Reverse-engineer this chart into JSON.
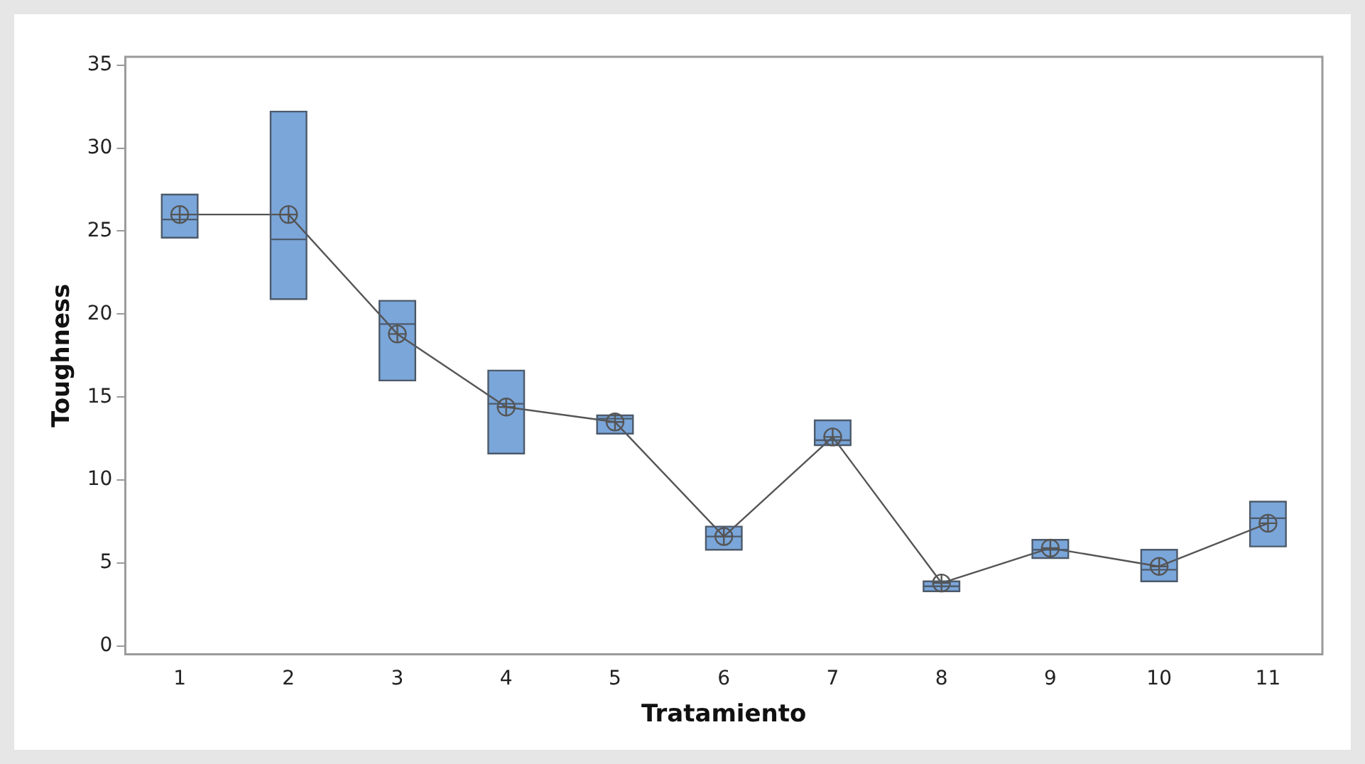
{
  "chart_data": {
    "type": "box",
    "xlabel": "Tratamiento",
    "ylabel": "Toughness",
    "categories": [
      "1",
      "2",
      "3",
      "4",
      "5",
      "6",
      "7",
      "8",
      "9",
      "10",
      "11"
    ],
    "color": "#7aa6da",
    "boxes": [
      {
        "low": 24.6,
        "q1": 24.6,
        "median": 25.7,
        "q3": 27.2,
        "high": 27.2,
        "mean": 26.0
      },
      {
        "low": 20.9,
        "q1": 20.9,
        "median": 24.5,
        "q3": 32.2,
        "high": 32.2,
        "mean": 26.0
      },
      {
        "low": 16.0,
        "q1": 16.0,
        "median": 19.4,
        "q3": 20.8,
        "high": 20.8,
        "mean": 18.8
      },
      {
        "low": 11.6,
        "q1": 11.6,
        "median": 14.6,
        "q3": 16.6,
        "high": 16.6,
        "mean": 14.4
      },
      {
        "low": 12.8,
        "q1": 12.8,
        "median": 13.7,
        "q3": 13.9,
        "high": 13.9,
        "mean": 13.5
      },
      {
        "low": 5.8,
        "q1": 5.8,
        "median": 6.6,
        "q3": 7.2,
        "high": 7.2,
        "mean": 6.6
      },
      {
        "low": 12.1,
        "q1": 12.1,
        "median": 12.4,
        "q3": 13.6,
        "high": 13.6,
        "mean": 12.6
      },
      {
        "low": 3.3,
        "q1": 3.3,
        "median": 3.6,
        "q3": 3.9,
        "high": 3.9,
        "mean": 3.8
      },
      {
        "low": 5.3,
        "q1": 5.3,
        "median": 5.8,
        "q3": 6.4,
        "high": 6.4,
        "mean": 5.9
      },
      {
        "low": 3.9,
        "q1": 3.9,
        "median": 4.6,
        "q3": 5.8,
        "high": 5.8,
        "mean": 4.8
      },
      {
        "low": 6.0,
        "q1": 6.0,
        "median": 7.7,
        "q3": 8.7,
        "high": 8.7,
        "mean": 7.4
      }
    ],
    "series": [
      {
        "type": "line",
        "color": "#555555",
        "marker": "none",
        "values": [
          26.0,
          26.0,
          18.8,
          14.4,
          13.5,
          6.6,
          12.6,
          3.8,
          5.9,
          4.8,
          7.4
        ]
      }
    ],
    "ylim": [
      -0.5,
      35.5
    ],
    "yticks": [
      0,
      5,
      10,
      15,
      20,
      25,
      30,
      35
    ],
    "grid": false,
    "legend": false
  }
}
